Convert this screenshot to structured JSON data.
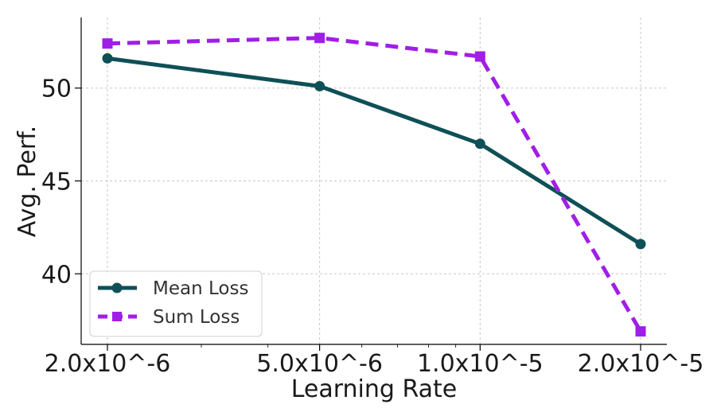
{
  "chart_data": {
    "type": "line",
    "xlabel": "Learning Rate",
    "ylabel": "Avg. Perf.",
    "x_scale": "log",
    "x": [
      2e-06,
      5e-06,
      1e-05,
      2e-05
    ],
    "x_tick_labels": [
      "2.0x10^-6",
      "5.0x10^-6",
      "1.0x10^-5",
      "2.0x10^-5"
    ],
    "y_ticks": [
      40,
      45,
      50
    ],
    "y_tick_labels": [
      "40",
      "45",
      "50"
    ],
    "ylim": [
      36.2,
      53.8
    ],
    "grid": true,
    "legend_position": "lower-left",
    "series": [
      {
        "name": "Mean Loss",
        "values": [
          51.6,
          50.1,
          47.0,
          41.6
        ],
        "color": "#0f5057",
        "marker": "circle",
        "line_style": "solid"
      },
      {
        "name": "Sum Loss",
        "values": [
          52.4,
          52.7,
          51.7,
          36.9
        ],
        "color": "#a01ee6",
        "marker": "square",
        "line_style": "dashed"
      }
    ]
  }
}
